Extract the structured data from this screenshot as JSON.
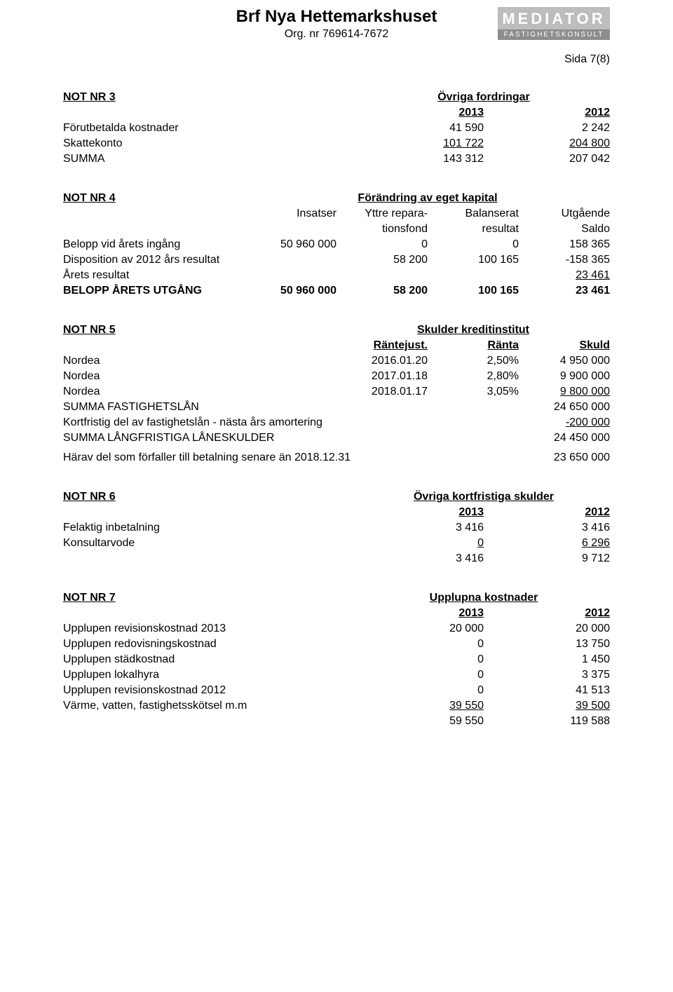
{
  "header": {
    "org_title": "Brf Nya Hettemarkshuset",
    "org_nr": "Org. nr 769614-7672",
    "logo_top": "MEDIATOR",
    "logo_bottom": "FASTIGHETSKONSULT",
    "sida": "Sida 7(8)"
  },
  "note3": {
    "title": "NOT NR 3",
    "subtitle": "Övriga fordringar",
    "col1_header": "2013",
    "col2_header": "2012",
    "rows": [
      {
        "label": "Förutbetalda kostnader",
        "c1": "41 590",
        "c2": "2 242"
      },
      {
        "label": "Skattekonto",
        "c1": "101 722",
        "c2": "204 800"
      }
    ],
    "sum_label": "SUMMA",
    "sum_c1": "143 312",
    "sum_c2": "207 042"
  },
  "note4": {
    "title": "NOT NR 4",
    "subtitle": "Förändring av eget kapital",
    "h1": "Insatser",
    "h2a": "Yttre repara-",
    "h2b": "tionsfond",
    "h3a": "Balanserat",
    "h3b": "resultat",
    "h4a": "Utgående",
    "h4b": "Saldo",
    "rows": [
      {
        "label": "Belopp vid årets ingång",
        "c1": "50 960 000",
        "c2": "0",
        "c3": "0",
        "c4": "158 365"
      },
      {
        "label": "Disposition av 2012 års resultat",
        "c1": "",
        "c2": "58 200",
        "c3": "100 165",
        "c4": "-158 365"
      },
      {
        "label": "Årets resultat",
        "c1": "",
        "c2": "",
        "c3": "",
        "c4": "23 461"
      }
    ],
    "sum_label": "BELOPP ÅRETS UTGÅNG",
    "sum_c1": "50 960 000",
    "sum_c2": "58 200",
    "sum_c3": "100 165",
    "sum_c4": "23 461"
  },
  "note5": {
    "title": "NOT NR 5",
    "subtitle": "Skulder kreditinstitut",
    "h1": "Räntejust.",
    "h2": "Ränta",
    "h3": "Skuld",
    "rows": [
      {
        "label": "Nordea",
        "c1": "2016.01.20",
        "c2": "2,50%",
        "c3": "4 950 000"
      },
      {
        "label": "Nordea",
        "c1": "2017.01.18",
        "c2": "2,80%",
        "c3": "9 900 000"
      },
      {
        "label": "Nordea",
        "c1": "2018.01.17",
        "c2": "3,05%",
        "c3": "9 800 000"
      }
    ],
    "sum1_label": "SUMMA FASTIGHETSLÅN",
    "sum1_val": "24 650 000",
    "amort_label": "Kortfristig del av fastighetslån - nästa års amortering",
    "amort_val": "-200 000",
    "sum2_label": "SUMMA LÅNGFRISTIGA LÅNESKULDER",
    "sum2_val": "24 450 000",
    "extra_label": "Härav del som förfaller till betalning senare än 2018.12.31",
    "extra_val": "23 650 000"
  },
  "note6": {
    "title": "NOT NR 6",
    "subtitle": "Övriga kortfristiga skulder",
    "col1_header": "2013",
    "col2_header": "2012",
    "rows": [
      {
        "label": "Felaktig inbetalning",
        "c1": "3 416",
        "c2": "3 416"
      },
      {
        "label": "Konsultarvode",
        "c1": "0",
        "c2": "6 296"
      }
    ],
    "sum_c1": "3 416",
    "sum_c2": "9 712"
  },
  "note7": {
    "title": "NOT NR 7",
    "subtitle": "Upplupna kostnader",
    "col1_header": "2013",
    "col2_header": "2012",
    "rows": [
      {
        "label": "Upplupen revisionskostnad 2013",
        "c1": "20 000",
        "c2": "20 000"
      },
      {
        "label": "Upplupen redovisningskostnad",
        "c1": "0",
        "c2": "13 750"
      },
      {
        "label": "Upplupen städkostnad",
        "c1": "0",
        "c2": "1 450"
      },
      {
        "label": "Upplupen lokalhyra",
        "c1": "0",
        "c2": "3 375"
      },
      {
        "label": "Upplupen revisionskostnad 2012",
        "c1": "0",
        "c2": "41 513"
      },
      {
        "label": "Värme, vatten, fastighetsskötsel m.m",
        "c1": "39 550",
        "c2": "39 500"
      }
    ],
    "sum_c1": "59 550",
    "sum_c2": "119 588"
  }
}
